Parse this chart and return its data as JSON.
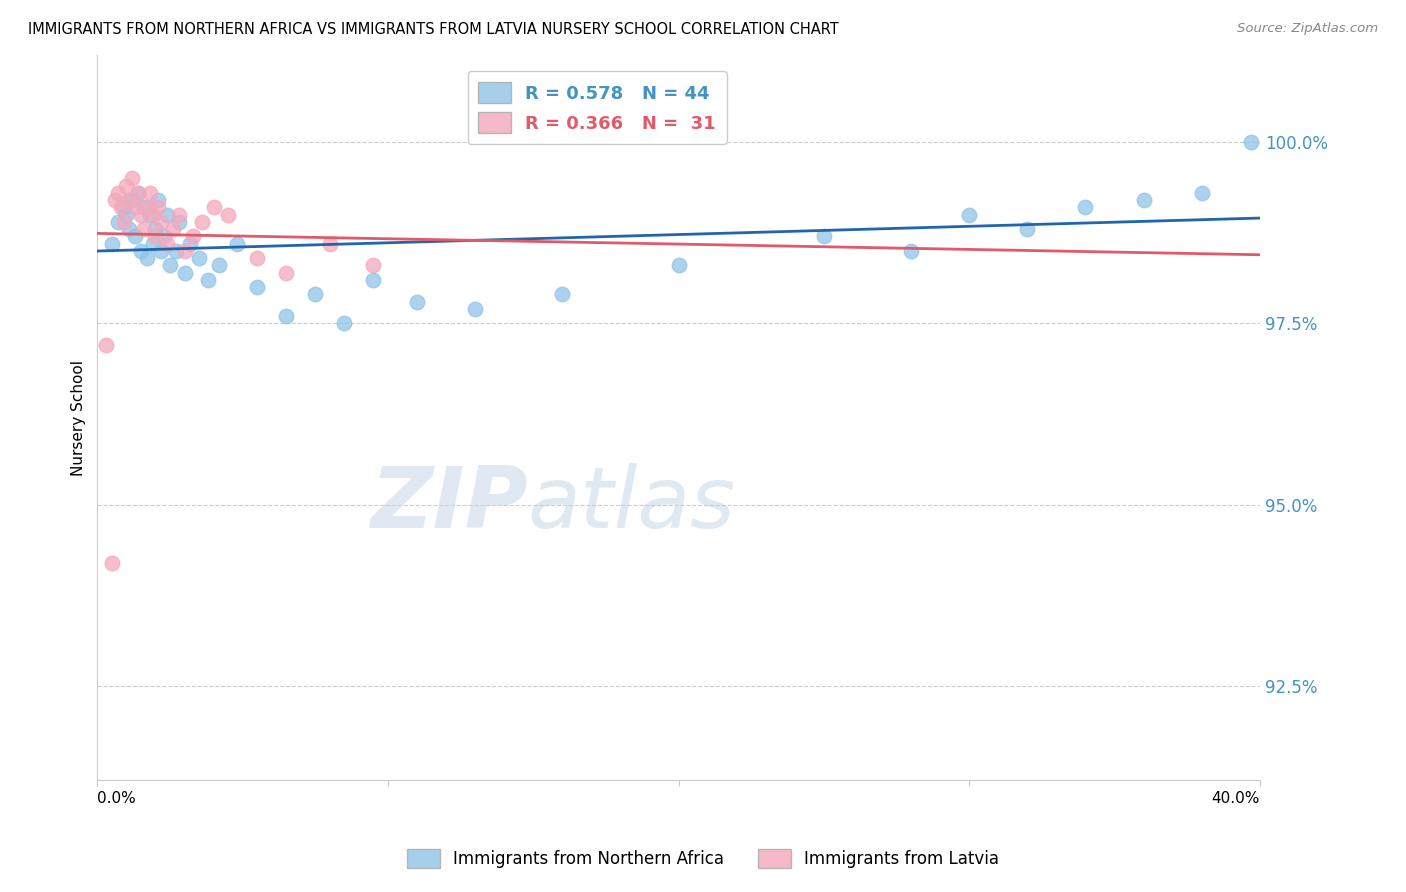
{
  "title": "IMMIGRANTS FROM NORTHERN AFRICA VS IMMIGRANTS FROM LATVIA NURSERY SCHOOL CORRELATION CHART",
  "source": "Source: ZipAtlas.com",
  "ylabel": "Nursery School",
  "yticks": [
    92.5,
    95.0,
    97.5,
    100.0
  ],
  "ytick_labels": [
    "92.5%",
    "95.0%",
    "97.5%",
    "100.0%"
  ],
  "xlim": [
    0.0,
    0.4
  ],
  "ylim": [
    91.2,
    101.2
  ],
  "watermark_zip": "ZIP",
  "watermark_atlas": "atlas",
  "legend_blue_r": "0.578",
  "legend_blue_n": "44",
  "legend_pink_r": "0.366",
  "legend_pink_n": "31",
  "blue_color": "#90c4e8",
  "pink_color": "#f4a8bc",
  "blue_line_color": "#2166ac",
  "pink_line_color": "#e05a6a",
  "axis_tick_color": "#4393c3",
  "grid_color": "#cccccc",
  "blue_scatter_x": [
    0.005,
    0.007,
    0.009,
    0.01,
    0.011,
    0.012,
    0.013,
    0.014,
    0.015,
    0.016,
    0.017,
    0.018,
    0.019,
    0.02,
    0.021,
    0.022,
    0.023,
    0.024,
    0.025,
    0.027,
    0.028,
    0.03,
    0.032,
    0.035,
    0.038,
    0.042,
    0.048,
    0.055,
    0.065,
    0.075,
    0.085,
    0.095,
    0.11,
    0.13,
    0.16,
    0.2,
    0.25,
    0.28,
    0.3,
    0.32,
    0.34,
    0.36,
    0.38,
    0.397
  ],
  "blue_scatter_y": [
    98.6,
    98.9,
    99.1,
    99.0,
    98.8,
    99.2,
    98.7,
    99.3,
    98.5,
    99.1,
    98.4,
    99.0,
    98.6,
    98.8,
    99.2,
    98.5,
    98.7,
    99.0,
    98.3,
    98.5,
    98.9,
    98.2,
    98.6,
    98.4,
    98.1,
    98.3,
    98.6,
    98.0,
    97.6,
    97.9,
    97.5,
    98.1,
    97.8,
    97.7,
    97.9,
    98.3,
    98.7,
    98.5,
    99.0,
    98.8,
    99.1,
    99.2,
    99.3,
    100.0
  ],
  "pink_scatter_x": [
    0.003,
    0.005,
    0.006,
    0.007,
    0.008,
    0.009,
    0.01,
    0.011,
    0.012,
    0.013,
    0.014,
    0.015,
    0.016,
    0.017,
    0.018,
    0.019,
    0.02,
    0.021,
    0.022,
    0.024,
    0.026,
    0.028,
    0.03,
    0.033,
    0.036,
    0.04,
    0.045,
    0.055,
    0.065,
    0.08,
    0.095
  ],
  "pink_scatter_y": [
    97.2,
    94.2,
    99.2,
    99.3,
    99.1,
    98.9,
    99.4,
    99.2,
    99.5,
    99.1,
    99.3,
    99.0,
    98.8,
    99.1,
    99.3,
    99.0,
    98.7,
    99.1,
    98.9,
    98.6,
    98.8,
    99.0,
    98.5,
    98.7,
    98.9,
    99.1,
    99.0,
    98.4,
    98.2,
    98.6,
    98.3
  ]
}
